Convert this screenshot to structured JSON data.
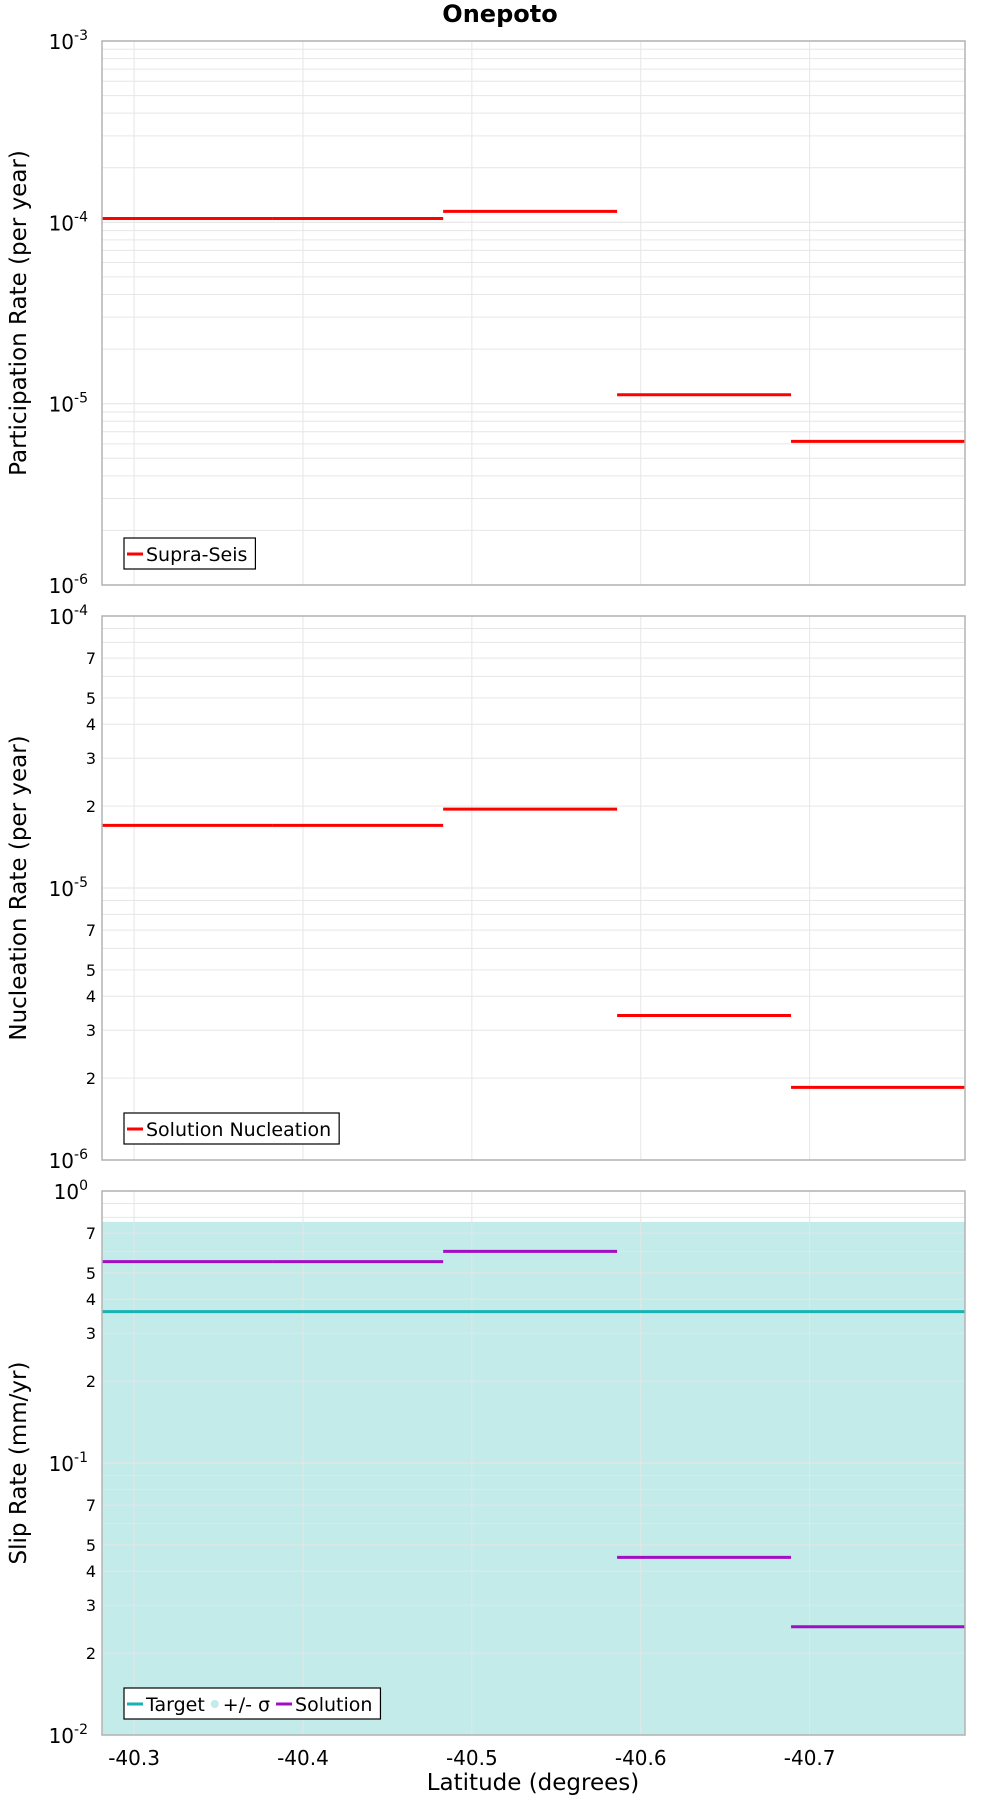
{
  "title": "Onepoto",
  "xlabel": "Latitude (degrees)",
  "x_ticks": [
    "-40.3",
    "-40.4",
    "-40.5",
    "-40.6",
    "-40.7"
  ],
  "colors": {
    "red": "#ff0000",
    "teal": "#17b2b2",
    "band": "#c2ebe9",
    "purple": "#a20ec4",
    "grid": "#e6e6e6",
    "frame": "#b3b3b3"
  },
  "chart_data": [
    {
      "type": "line",
      "ylabel": "Participation Rate (per year)",
      "yscale": "log",
      "ylim": [
        1e-06,
        0.001
      ],
      "xlim": [
        -40.281,
        -40.792
      ],
      "y_major_ticks": [
        {
          "base": "10",
          "exp": "-6"
        },
        {
          "base": "10",
          "exp": "-5"
        },
        {
          "base": "10",
          "exp": "-4"
        },
        {
          "base": "10",
          "exp": "-3"
        }
      ],
      "y_minor_ticks": [],
      "legend": {
        "position": "bottom-left",
        "entries": [
          {
            "label": "Supra-Seis",
            "color": "#ff0000",
            "kind": "line"
          }
        ]
      },
      "series": [
        {
          "name": "Supra-Seis",
          "style": "steps",
          "color": "#ff0000",
          "segments": [
            {
              "x0": -40.281,
              "x1": -40.382,
              "y": 0.000105
            },
            {
              "x0": -40.382,
              "x1": -40.483,
              "y": 0.000105
            },
            {
              "x0": -40.483,
              "x1": -40.586,
              "y": 0.000115
            },
            {
              "x0": -40.586,
              "x1": -40.689,
              "y": 1.12e-05
            },
            {
              "x0": -40.689,
              "x1": -40.792,
              "y": 6.2e-06
            }
          ]
        }
      ]
    },
    {
      "type": "line",
      "ylabel": "Nucleation Rate (per year)",
      "yscale": "log",
      "ylim": [
        1e-06,
        0.0001
      ],
      "xlim": [
        -40.281,
        -40.792
      ],
      "y_major_ticks": [
        {
          "base": "10",
          "exp": "-6"
        },
        {
          "base": "10",
          "exp": "-5"
        },
        {
          "base": "10",
          "exp": "-4"
        }
      ],
      "y_minor_ticks": [
        "2",
        "3",
        "4",
        "5",
        "7"
      ],
      "legend": {
        "position": "bottom-left",
        "entries": [
          {
            "label": "Solution Nucleation",
            "color": "#ff0000",
            "kind": "line"
          }
        ]
      },
      "series": [
        {
          "name": "Solution Nucleation",
          "style": "steps",
          "color": "#ff0000",
          "segments": [
            {
              "x0": -40.281,
              "x1": -40.382,
              "y": 1.7e-05
            },
            {
              "x0": -40.382,
              "x1": -40.483,
              "y": 1.7e-05
            },
            {
              "x0": -40.483,
              "x1": -40.586,
              "y": 1.95e-05
            },
            {
              "x0": -40.586,
              "x1": -40.689,
              "y": 3.4e-06
            },
            {
              "x0": -40.689,
              "x1": -40.792,
              "y": 1.85e-06
            }
          ]
        }
      ]
    },
    {
      "type": "line",
      "ylabel": "Slip Rate (mm/yr)",
      "yscale": "log",
      "ylim": [
        0.01,
        1
      ],
      "xlim": [
        -40.281,
        -40.792
      ],
      "y_major_ticks": [
        {
          "base": "10",
          "exp": "-2"
        },
        {
          "base": "10",
          "exp": "-1"
        },
        {
          "base": "10",
          "exp": "0"
        }
      ],
      "y_minor_ticks": [
        "2",
        "3",
        "4",
        "5",
        "7"
      ],
      "band": {
        "name": "+/- σ",
        "color": "#c2ebe9",
        "y0": 0.01,
        "y1": 0.77
      },
      "legend": {
        "position": "bottom-left",
        "entries": [
          {
            "label": "Target",
            "color": "#17b2b2",
            "kind": "line"
          },
          {
            "label": "+/- σ",
            "color": "#c2ebe9",
            "kind": "dot"
          },
          {
            "label": "Solution",
            "color": "#a20ec4",
            "kind": "line"
          }
        ]
      },
      "series": [
        {
          "name": "Target",
          "style": "steps",
          "color": "#17b2b2",
          "segments": [
            {
              "x0": -40.281,
              "x1": -40.792,
              "y": 0.36
            }
          ]
        },
        {
          "name": "Solution",
          "style": "steps",
          "color": "#a20ec4",
          "segments": [
            {
              "x0": -40.281,
              "x1": -40.382,
              "y": 0.55
            },
            {
              "x0": -40.382,
              "x1": -40.483,
              "y": 0.55
            },
            {
              "x0": -40.483,
              "x1": -40.586,
              "y": 0.6
            },
            {
              "x0": -40.586,
              "x1": -40.689,
              "y": 0.045
            },
            {
              "x0": -40.689,
              "x1": -40.792,
              "y": 0.025
            }
          ]
        }
      ]
    }
  ]
}
